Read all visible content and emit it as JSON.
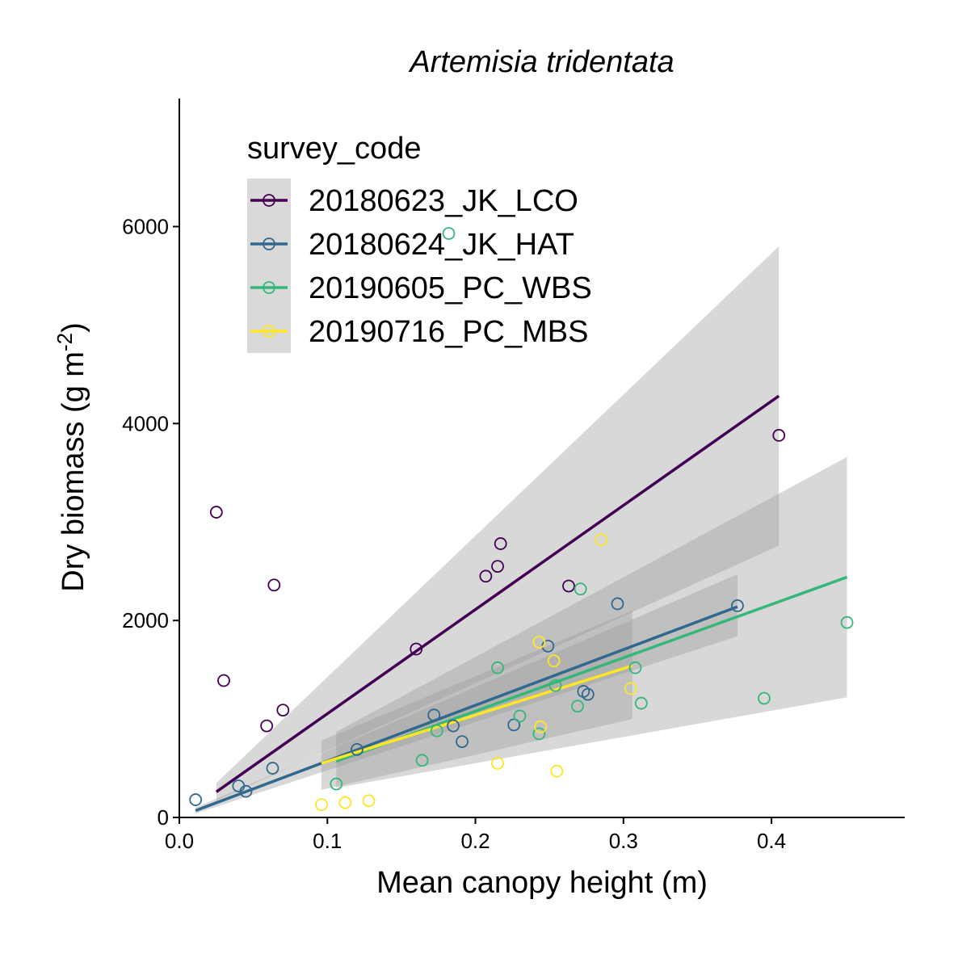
{
  "chart_data": {
    "type": "scatter",
    "title": "Artemisia tridentata",
    "xlabel": "Mean canopy height (m)",
    "ylabel": "Dry biomass (g m",
    "ylabel_superscript": "-2",
    "ylabel_suffix": ")",
    "xlim": [
      0,
      0.49
    ],
    "ylim": [
      0,
      7300
    ],
    "x_ticks": [
      0.0,
      0.1,
      0.2,
      0.3,
      0.4
    ],
    "x_tick_labels": [
      "0.0",
      "0.1",
      "0.2",
      "0.3",
      "0.4"
    ],
    "y_ticks": [
      0,
      2000,
      4000,
      6000
    ],
    "y_tick_labels": [
      "0",
      "2000",
      "4000",
      "6000"
    ],
    "grid": false,
    "legend": {
      "title": "survey_code",
      "position": "top-left"
    },
    "series": [
      {
        "name": "20180623_JK_LCO",
        "color": "#440154",
        "points": [
          [
            0.025,
            3100
          ],
          [
            0.03,
            1390
          ],
          [
            0.059,
            930
          ],
          [
            0.064,
            2360
          ],
          [
            0.07,
            1090
          ],
          [
            0.16,
            1710
          ],
          [
            0.207,
            2450
          ],
          [
            0.215,
            2550
          ],
          [
            0.217,
            2780
          ],
          [
            0.263,
            2350
          ],
          [
            0.405,
            3880
          ]
        ],
        "fit": {
          "x": [
            0.025,
            0.405
          ],
          "y": [
            260,
            4280
          ]
        },
        "band": {
          "x": [
            0.025,
            0.405
          ],
          "lower": [
            170,
            2760
          ],
          "upper": [
            350,
            5800
          ]
        }
      },
      {
        "name": "20180624_JK_HAT",
        "color": "#31688E",
        "points": [
          [
            0.011,
            180
          ],
          [
            0.04,
            320
          ],
          [
            0.045,
            265
          ],
          [
            0.063,
            500
          ],
          [
            0.12,
            690
          ],
          [
            0.172,
            1040
          ],
          [
            0.185,
            930
          ],
          [
            0.191,
            770
          ],
          [
            0.226,
            940
          ],
          [
            0.249,
            1740
          ],
          [
            0.273,
            1280
          ],
          [
            0.276,
            1250
          ],
          [
            0.296,
            2170
          ],
          [
            0.377,
            2150
          ]
        ],
        "fit": {
          "x": [
            0.011,
            0.377
          ],
          "y": [
            70,
            2140
          ]
        },
        "band": {
          "x": [
            0.011,
            0.377
          ],
          "lower": [
            40,
            1840
          ],
          "upper": [
            100,
            2470
          ]
        }
      },
      {
        "name": "20190605_PC_WBS",
        "color": "#35B779",
        "points": [
          [
            0.106,
            340
          ],
          [
            0.164,
            580
          ],
          [
            0.174,
            880
          ],
          [
            0.182,
            5930
          ],
          [
            0.215,
            1520
          ],
          [
            0.23,
            1030
          ],
          [
            0.243,
            850
          ],
          [
            0.254,
            1340
          ],
          [
            0.269,
            1130
          ],
          [
            0.271,
            2320
          ],
          [
            0.308,
            1520
          ],
          [
            0.312,
            1160
          ],
          [
            0.395,
            1210
          ],
          [
            0.451,
            1980
          ]
        ],
        "fit": {
          "x": [
            0.106,
            0.451
          ],
          "y": [
            570,
            2440
          ]
        },
        "band": {
          "x": [
            0.106,
            0.451
          ],
          "lower": [
            300,
            1220
          ],
          "upper": [
            870,
            3660
          ]
        }
      },
      {
        "name": "20190716_PC_MBS",
        "color": "#FDE725",
        "points": [
          [
            0.096,
            130
          ],
          [
            0.112,
            150
          ],
          [
            0.128,
            170
          ],
          [
            0.215,
            550
          ],
          [
            0.243,
            1780
          ],
          [
            0.244,
            920
          ],
          [
            0.253,
            1590
          ],
          [
            0.255,
            470
          ],
          [
            0.285,
            2820
          ],
          [
            0.305,
            1310
          ]
        ],
        "fit": {
          "x": [
            0.096,
            0.306
          ],
          "y": [
            550,
            1540
          ]
        },
        "band": {
          "x": [
            0.096,
            0.306
          ],
          "lower": [
            280,
            1000
          ],
          "upper": [
            780,
            2100
          ]
        }
      }
    ]
  }
}
